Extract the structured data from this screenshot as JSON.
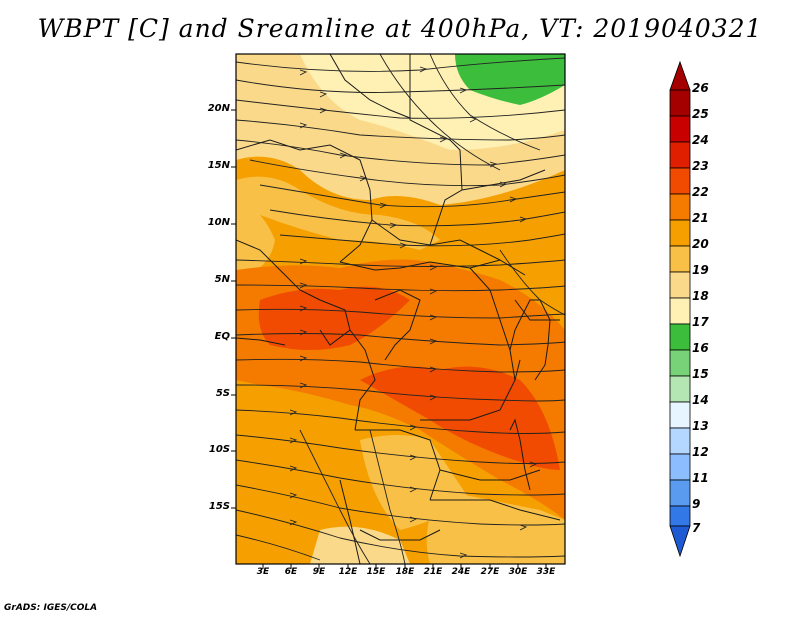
{
  "title": "WBPT [C] and Sreamline at 400hPa, VT: 2019040321",
  "credit": "GrADS: IGES/COLA",
  "axes": {
    "lat_labels": [
      "20N",
      "15N",
      "10N",
      "5N",
      "EQ",
      "5S",
      "10S",
      "15S"
    ],
    "lon_labels": [
      "3E",
      "6E",
      "9E",
      "12E",
      "15E",
      "18E",
      "21E",
      "24E",
      "27E",
      "30E",
      "33E"
    ]
  },
  "colorbar": {
    "labels": [
      "26",
      "25",
      "24",
      "23",
      "22",
      "21",
      "20",
      "19",
      "18",
      "17",
      "16",
      "15",
      "14",
      "13",
      "12",
      "11",
      "9",
      "7"
    ],
    "colors": [
      "#a50000",
      "#c80000",
      "#e01e00",
      "#f04b00",
      "#f57a00",
      "#f5a000",
      "#f8c046",
      "#fad98a",
      "#fff0b4",
      "#3cbe3c",
      "#78d278",
      "#b4e6b4",
      "#e6f5ff",
      "#b4d7ff",
      "#8cbeff",
      "#5a9bf0",
      "#3278e6",
      "#1e5ad2"
    ]
  },
  "colors": {
    "frame": "#000000",
    "streamline": "#222222",
    "border": "#1a1a1a"
  }
}
